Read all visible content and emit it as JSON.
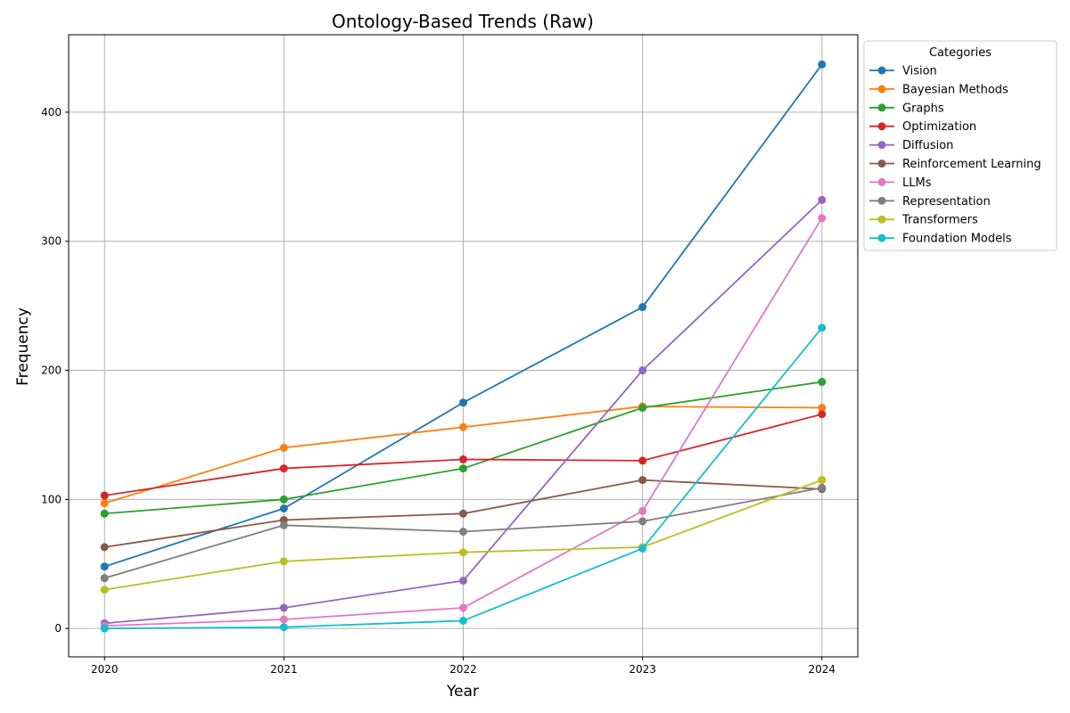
{
  "chart_data": {
    "type": "line",
    "title": "Ontology-Based Trends (Raw)",
    "xlabel": "Year",
    "ylabel": "Frequency",
    "x": [
      2020,
      2021,
      2022,
      2023,
      2024
    ],
    "x_tick_labels": [
      "2020",
      "2021",
      "2022",
      "2023",
      "2024"
    ],
    "xlim": [
      2019.8,
      2024.2
    ],
    "ylim": [
      -22,
      460
    ],
    "y_ticks": [
      0,
      100,
      200,
      300,
      400
    ],
    "y_tick_labels": [
      "0",
      "100",
      "200",
      "300",
      "400"
    ],
    "grid": true,
    "legend": {
      "title": "Categories",
      "placement": "outside upper-right"
    },
    "series": [
      {
        "name": "Vision",
        "color": "#1f77b4",
        "values": [
          48,
          93,
          175,
          249,
          437
        ]
      },
      {
        "name": "Bayesian Methods",
        "color": "#ff7f0e",
        "values": [
          97,
          140,
          156,
          172,
          171
        ]
      },
      {
        "name": "Graphs",
        "color": "#2ca02c",
        "values": [
          89,
          100,
          124,
          171,
          191
        ]
      },
      {
        "name": "Optimization",
        "color": "#d62728",
        "values": [
          103,
          124,
          131,
          130,
          166
        ]
      },
      {
        "name": "Diffusion",
        "color": "#9467bd",
        "values": [
          4,
          16,
          37,
          200,
          332
        ]
      },
      {
        "name": "Reinforcement Learning",
        "color": "#8c564b",
        "values": [
          63,
          84,
          89,
          115,
          108
        ]
      },
      {
        "name": "LLMs",
        "color": "#e377c2",
        "values": [
          2,
          7,
          16,
          91,
          318
        ]
      },
      {
        "name": "Representation",
        "color": "#7f7f7f",
        "values": [
          39,
          80,
          75,
          83,
          109
        ]
      },
      {
        "name": "Transformers",
        "color": "#bcbd22",
        "values": [
          30,
          52,
          59,
          63,
          115
        ]
      },
      {
        "name": "Foundation Models",
        "color": "#17becf",
        "values": [
          0,
          1,
          6,
          62,
          233
        ]
      }
    ]
  }
}
